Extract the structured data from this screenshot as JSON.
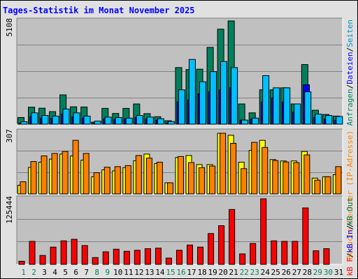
{
  "title": "Tages-Statistik im Monat November 2025",
  "colors": {
    "hits_dark": "#00805c",
    "files_dark": "#0000ff",
    "pages_light": "#00c0ff",
    "visits_dark": "#ff8000",
    "sites_light": "#ffff00",
    "kbyte": "#ff0000",
    "panel_bg": "#c0c0c0",
    "grid": "#808080"
  },
  "chart_data": [
    {
      "type": "bar",
      "name": "requests",
      "ymax_label": "5108",
      "ylim": [
        0,
        5108
      ],
      "categories": [
        "1",
        "2",
        "3",
        "4",
        "5",
        "6",
        "7",
        "8",
        "9",
        "10",
        "11",
        "12",
        "13",
        "14",
        "15",
        "16",
        "17",
        "18",
        "19",
        "20",
        "21",
        "22",
        "23",
        "24",
        "25",
        "26",
        "27",
        "28",
        "29",
        "30",
        "31"
      ],
      "series": [
        {
          "name": "Anfragen",
          "values": [
            330,
            840,
            790,
            620,
            1450,
            860,
            850,
            100,
            780,
            530,
            780,
            1000,
            520,
            370,
            170,
            2800,
            2700,
            2720,
            3800,
            4700,
            5108,
            1000,
            560,
            1700,
            1700,
            1800,
            1000,
            2950,
            690,
            480,
            400
          ]
        },
        {
          "name": "Dateien",
          "values": [
            60,
            380,
            300,
            280,
            500,
            360,
            300,
            40,
            260,
            240,
            260,
            320,
            250,
            200,
            60,
            1100,
            1200,
            1500,
            1600,
            1700,
            1800,
            200,
            250,
            1100,
            1300,
            1100,
            600,
            1950,
            330,
            250,
            200
          ]
        },
        {
          "name": "Seiten",
          "values": [
            120,
            560,
            430,
            400,
            750,
            560,
            400,
            150,
            350,
            330,
            300,
            430,
            350,
            270,
            130,
            1700,
            3200,
            2100,
            2600,
            3100,
            2800,
            200,
            300,
            2400,
            1800,
            1800,
            1000,
            1600,
            500,
            430,
            380
          ]
        }
      ],
      "legend": [
        "Anfragen",
        "/",
        "Dateien",
        "/",
        "Seiten"
      ]
    },
    {
      "type": "bar",
      "name": "visits",
      "ymax_label": "307",
      "ylim": [
        0,
        307
      ],
      "series": [
        {
          "name": "Rechner (IP-Adresse)",
          "values": [
            43,
            131,
            157,
            172,
            197,
            188,
            167,
            85,
            119,
            114,
            130,
            164,
            197,
            150,
            55,
            180,
            190,
            145,
            145,
            300,
            290,
            157,
            215,
            265,
            170,
            163,
            163,
            210,
            78,
            85,
            95
          ]
        },
        {
          "name": "Besuche",
          "values": [
            60,
            160,
            188,
            200,
            210,
            265,
            200,
            105,
            132,
            135,
            140,
            190,
            177,
            157,
            55,
            185,
            155,
            130,
            138,
            300,
            250,
            125,
            255,
            230,
            165,
            158,
            155,
            193,
            68,
            85,
            135
          ]
        }
      ],
      "legend": [
        "Besuche",
        "/",
        "Rechner (IP-Adresse)"
      ]
    },
    {
      "type": "bar",
      "name": "kbytes",
      "ymax_label": "125444",
      "ylim": [
        0,
        125444
      ],
      "series": [
        {
          "name": "kB F",
          "values": [
            6000,
            44000,
            17000,
            33000,
            45000,
            48000,
            36000,
            13000,
            24000,
            29000,
            25000,
            27000,
            30000,
            31000,
            12000,
            27000,
            37000,
            33000,
            59000,
            74000,
            105000,
            20000,
            40000,
            125444,
            45000,
            44000,
            44000,
            108000,
            26000,
            30000,
            0
          ]
        }
      ],
      "legend": [
        "kB F",
        "/",
        "kB In",
        "/",
        "kB Out"
      ]
    }
  ],
  "x_labels": [
    "1",
    "2",
    "3",
    "4",
    "5",
    "6",
    "7",
    "8",
    "9",
    "10",
    "11",
    "12",
    "13",
    "14",
    "15",
    "16",
    "17",
    "18",
    "19",
    "20",
    "21",
    "22",
    "23",
    "24",
    "25",
    "26",
    "27",
    "28",
    "29",
    "30",
    "31"
  ],
  "weekend_days": [
    "1",
    "2",
    "8",
    "9",
    "15",
    "16",
    "22",
    "23",
    "29",
    "30"
  ]
}
